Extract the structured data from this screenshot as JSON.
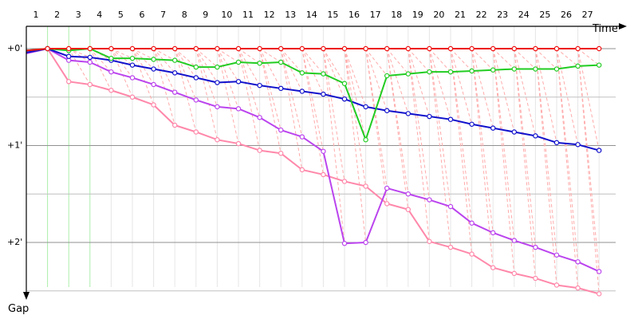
{
  "chart_data": {
    "type": "line",
    "title": "",
    "xlabel": "Time",
    "ylabel": "Gap",
    "x_tick_labels": [
      "1",
      "2",
      "3",
      "4",
      "5",
      "6",
      "7",
      "8",
      "9",
      "10",
      "11",
      "12",
      "13",
      "14",
      "15",
      "16",
      "17",
      "18",
      "19",
      "20",
      "21",
      "22",
      "23",
      "24",
      "25",
      "26",
      "27"
    ],
    "y_tick_labels": [
      "+0'",
      "+1'",
      "+2'"
    ],
    "ylim": [
      0,
      2.5
    ],
    "y_inverted": true,
    "grid": true,
    "colors": {
      "red": "#ee1111",
      "green": "#22cc22",
      "blue": "#1111cc",
      "purple": "#bb44ee",
      "pink": "#ff88aa",
      "connector": "#ffaaaa",
      "grid": "#c0c0c0",
      "vgrid": "#e6e6e6",
      "green_vgrid": "#aaeeaa"
    },
    "x": [
      1,
      2,
      3,
      4,
      5,
      6,
      7,
      8,
      9,
      10,
      11,
      12,
      13,
      14,
      15,
      16,
      17,
      18,
      19,
      20,
      21,
      22,
      23,
      24,
      25,
      26,
      27,
      28
    ],
    "series": [
      {
        "color": "red",
        "values": [
          0.02,
          0,
          0,
          0,
          0,
          0,
          0,
          0,
          0,
          0,
          0,
          0,
          0,
          0,
          0,
          0,
          0,
          0,
          0,
          0,
          0,
          0,
          0,
          0,
          0,
          0,
          0,
          0
        ]
      },
      {
        "color": "green",
        "values": [
          0.02,
          0,
          0.02,
          0,
          0.1,
          0.1,
          0.11,
          0.12,
          0.19,
          0.19,
          0.14,
          0.15,
          0.14,
          0.25,
          0.26,
          0.36,
          0.94,
          0.28,
          0.26,
          0.24,
          0.24,
          0.23,
          0.22,
          0.21,
          0.21,
          0.21,
          0.18,
          0.17
        ]
      },
      {
        "color": "blue",
        "values": [
          0.04,
          0,
          0.08,
          0.09,
          0.12,
          0.17,
          0.21,
          0.25,
          0.3,
          0.35,
          0.34,
          0.38,
          0.41,
          0.44,
          0.47,
          0.52,
          0.6,
          0.64,
          0.67,
          0.7,
          0.73,
          0.78,
          0.82,
          0.86,
          0.9,
          0.97,
          0.99,
          1.05
        ]
      },
      {
        "color": "purple",
        "values": [
          0.05,
          0,
          0.12,
          0.14,
          0.24,
          0.3,
          0.37,
          0.45,
          0.53,
          0.6,
          0.62,
          0.71,
          0.84,
          0.91,
          1.06,
          2.01,
          2.0,
          1.44,
          1.5,
          1.56,
          1.63,
          1.8,
          1.9,
          1.98,
          2.05,
          2.13,
          2.2,
          2.3
        ]
      },
      {
        "color": "pink",
        "values": [
          0.03,
          0,
          0.34,
          0.37,
          0.43,
          0.5,
          0.58,
          0.79,
          0.86,
          0.94,
          0.98,
          1.05,
          1.08,
          1.25,
          1.3,
          1.37,
          1.42,
          1.6,
          1.66,
          1.99,
          2.05,
          2.12,
          2.26,
          2.32,
          2.37,
          2.44,
          2.47,
          2.53
        ]
      }
    ]
  }
}
